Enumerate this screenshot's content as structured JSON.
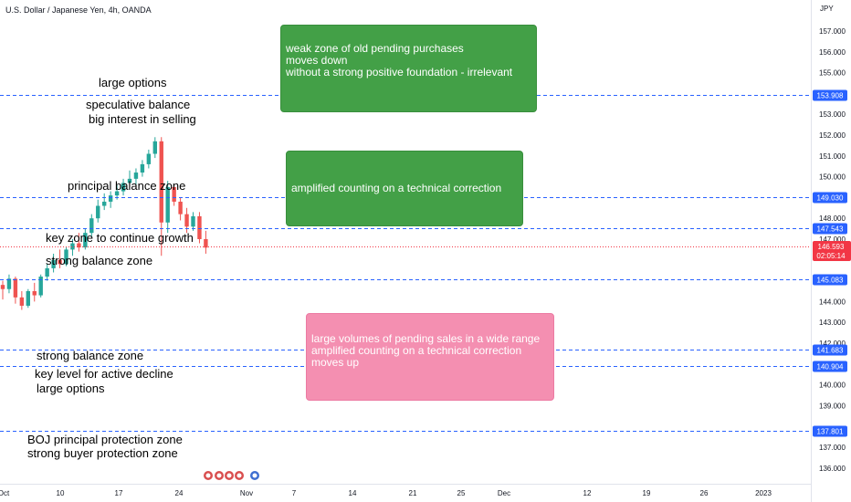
{
  "symbol_title": "U.S. Dollar / Japanese Yen, 4h, OANDA",
  "currency_label": "JPY",
  "price_ticks": [
    "157.000",
    "156.000",
    "155.000",
    "153.000",
    "152.000",
    "151.000",
    "150.000",
    "148.000",
    "147.000",
    "144.000",
    "143.000",
    "142.000",
    "140.000",
    "139.000",
    "137.000",
    "136.000"
  ],
  "time_ticks": [
    "Oct",
    "10",
    "17",
    "24",
    "Nov",
    "7",
    "14",
    "21",
    "25",
    "Dec",
    "12",
    "19",
    "26",
    "2023"
  ],
  "level_lines": [
    {
      "price": 153.908,
      "label": "153.908"
    },
    {
      "price": 149.03,
      "label": "149.030"
    },
    {
      "price": 147.543,
      "label": "147.543"
    },
    {
      "price": 145.083,
      "label": "145.083"
    },
    {
      "price": 141.683,
      "label": "141.683"
    },
    {
      "price": 140.904,
      "label": "140.904"
    },
    {
      "price": 137.801,
      "label": "137.801"
    }
  ],
  "current_price": {
    "value": 146.593,
    "label": "146.593",
    "countdown": "02:05:14"
  },
  "annotations": [
    "large options",
    "speculative balance",
    "big interest in selling",
    "principal balance zone",
    "key zone to continue growth",
    "strong balance zone",
    "strong balance zone",
    "key level for active decline",
    "large options",
    "BOJ principal protection zone",
    "strong buyer protection zone"
  ],
  "boxes": [
    {
      "lines": [
        "weak  zone of old pending purchases",
        "moves down",
        "without a strong positive foundation - irrelevant"
      ]
    },
    {
      "lines": [
        "amplified counting on a technical correction"
      ]
    },
    {
      "lines": [
        "large volumes of pending sales in a wide range",
        "amplified counting on a technical correction",
        "moves up"
      ]
    }
  ],
  "colors": {
    "up": "#26a69a",
    "down": "#ef5350",
    "level_line": "#2962ff",
    "axis_label_bg": "#2962ff",
    "price_label_bg": "#f23645",
    "green_box": "#43a047",
    "pink_box": "#f48fb1"
  },
  "chart_data": {
    "type": "candlestick",
    "y_scale": "linear",
    "ylim": [
      135.4,
      158.0
    ],
    "x_axis": [
      "Oct",
      "10",
      "17",
      "24",
      "Nov",
      "7",
      "14",
      "21",
      "25",
      "Dec",
      "12",
      "19",
      "26",
      "2023"
    ],
    "ohlc": [
      [
        144.8,
        145.0,
        144.1,
        144.6
      ],
      [
        144.6,
        145.3,
        144.4,
        145.1
      ],
      [
        145.1,
        145.2,
        143.9,
        144.2
      ],
      [
        144.2,
        144.5,
        143.6,
        143.8
      ],
      [
        143.8,
        144.6,
        143.7,
        144.5
      ],
      [
        144.5,
        144.9,
        144.0,
        144.3
      ],
      [
        144.3,
        145.3,
        144.2,
        145.2
      ],
      [
        145.2,
        145.8,
        145.0,
        145.6
      ],
      [
        145.6,
        146.3,
        145.4,
        146.0
      ],
      [
        146.0,
        146.5,
        145.6,
        145.8
      ],
      [
        145.8,
        146.6,
        145.7,
        146.5
      ],
      [
        146.5,
        147.0,
        146.2,
        146.8
      ],
      [
        146.8,
        147.3,
        146.4,
        146.6
      ],
      [
        146.6,
        147.5,
        146.5,
        147.3
      ],
      [
        147.3,
        148.2,
        147.1,
        148.0
      ],
      [
        148.0,
        148.9,
        147.8,
        148.6
      ],
      [
        148.6,
        149.2,
        148.4,
        148.8
      ],
      [
        148.8,
        149.3,
        148.5,
        149.1
      ],
      [
        149.1,
        149.6,
        148.9,
        149.3
      ],
      [
        149.3,
        149.9,
        149.1,
        149.7
      ],
      [
        149.7,
        150.3,
        149.4,
        149.9
      ],
      [
        149.9,
        150.4,
        149.6,
        150.2
      ],
      [
        150.2,
        150.8,
        150.0,
        150.6
      ],
      [
        150.6,
        151.3,
        150.4,
        151.1
      ],
      [
        151.1,
        151.9,
        150.9,
        151.7
      ],
      [
        151.7,
        151.9,
        146.2,
        147.8
      ],
      [
        147.8,
        149.8,
        147.3,
        149.5
      ],
      [
        149.5,
        149.6,
        148.6,
        148.8
      ],
      [
        148.8,
        149.0,
        147.9,
        148.2
      ],
      [
        148.2,
        148.5,
        147.3,
        147.6
      ],
      [
        147.6,
        148.3,
        147.4,
        148.1
      ],
      [
        148.1,
        148.3,
        146.8,
        147.0
      ],
      [
        147.0,
        147.4,
        146.3,
        146.593
      ]
    ]
  }
}
